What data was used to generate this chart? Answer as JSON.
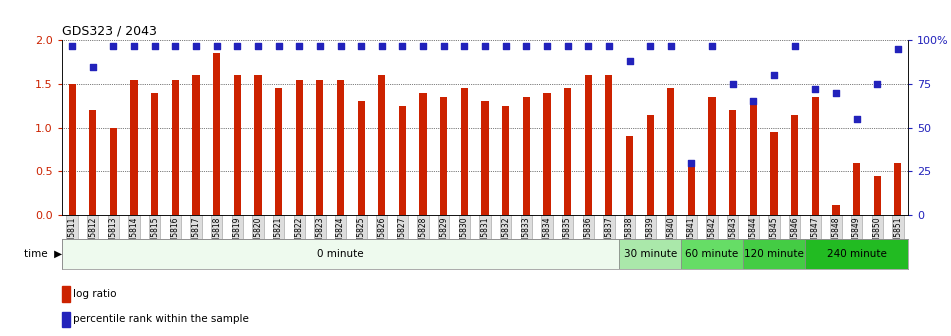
{
  "title": "GDS323 / 2043",
  "samples": [
    "GSM5811",
    "GSM5812",
    "GSM5813",
    "GSM5814",
    "GSM5815",
    "GSM5816",
    "GSM5817",
    "GSM5818",
    "GSM5819",
    "GSM5820",
    "GSM5821",
    "GSM5822",
    "GSM5823",
    "GSM5824",
    "GSM5825",
    "GSM5826",
    "GSM5827",
    "GSM5828",
    "GSM5829",
    "GSM5830",
    "GSM5831",
    "GSM5832",
    "GSM5833",
    "GSM5834",
    "GSM5835",
    "GSM5836",
    "GSM5837",
    "GSM5838",
    "GSM5839",
    "GSM5840",
    "GSM5841",
    "GSM5842",
    "GSM5843",
    "GSM5844",
    "GSM5845",
    "GSM5846",
    "GSM5847",
    "GSM5848",
    "GSM5849",
    "GSM5850",
    "GSM5851"
  ],
  "log_ratio": [
    1.5,
    1.2,
    1.0,
    1.55,
    1.4,
    1.55,
    1.6,
    1.85,
    1.6,
    1.6,
    1.45,
    1.55,
    1.55,
    1.55,
    1.3,
    1.6,
    1.25,
    1.4,
    1.35,
    1.45,
    1.3,
    1.25,
    1.35,
    1.4,
    1.45,
    1.6,
    1.6,
    0.9,
    1.15,
    1.45,
    0.55,
    1.35,
    1.2,
    1.3,
    0.95,
    1.15,
    1.35,
    0.12,
    0.6,
    0.45,
    0.6
  ],
  "percentile_rank": [
    97,
    85,
    97,
    97,
    97,
    97,
    97,
    97,
    97,
    97,
    97,
    97,
    97,
    97,
    97,
    97,
    97,
    97,
    97,
    97,
    97,
    97,
    97,
    97,
    97,
    97,
    97,
    88,
    97,
    97,
    30,
    97,
    75,
    65,
    80,
    97,
    72,
    70,
    55,
    75,
    95
  ],
  "bar_color": "#cc2200",
  "dot_color": "#2222bb",
  "background_color": "#ffffff",
  "time_groups": [
    {
      "label": "0 minute",
      "start": 0,
      "end": 27,
      "color": "#eefaee"
    },
    {
      "label": "30 minute",
      "start": 27,
      "end": 30,
      "color": "#aae8aa"
    },
    {
      "label": "60 minute",
      "start": 30,
      "end": 33,
      "color": "#66dd66"
    },
    {
      "label": "120 minute",
      "start": 33,
      "end": 36,
      "color": "#44cc44"
    },
    {
      "label": "240 minute",
      "start": 36,
      "end": 41,
      "color": "#22bb22"
    }
  ],
  "ylim_left": [
    0,
    2.0
  ],
  "ylim_right": [
    0,
    100
  ],
  "yticks_left": [
    0,
    0.5,
    1.0,
    1.5,
    2.0
  ],
  "yticks_right": [
    0,
    25,
    50,
    75,
    100
  ],
  "ytick_labels_right": [
    "0",
    "25",
    "50",
    "75",
    "100%"
  ]
}
